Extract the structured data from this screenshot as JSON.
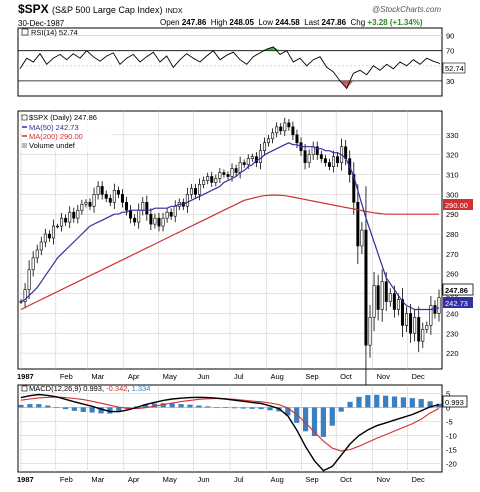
{
  "header": {
    "symbol": "$SPX",
    "name": "(S&P 500 Large Cap Index)",
    "exchange": "INDX",
    "date": "30-Dec-1987",
    "open_label": "Open",
    "open": "247.86",
    "high_label": "High",
    "high": "248.05",
    "low_label": "Low",
    "low": "244.58",
    "last_label": "Last",
    "last": "247.86",
    "chg_label": "Chg",
    "chg": "+3.28 (+1.34%)",
    "brand": "@StockCharts.com"
  },
  "colors": {
    "rsi_line": "#000000",
    "ma50": "#3030a0",
    "ma200": "#d03030",
    "candle": "#000000",
    "grid": "#c8c8c8",
    "hist": "#3a7fc0",
    "macd_line": "#000000",
    "macd_signal": "#d03030",
    "overbought_fill": "#2a8a2a",
    "oversold_fill": "#c03030"
  },
  "chart_data": [
    {
      "type": "line",
      "panel": "rsi",
      "legend": "RSI(14) 52.74",
      "y_ticks": [
        90,
        70,
        50,
        30
      ],
      "ylim": [
        10,
        100
      ],
      "last_value_label": "52.74",
      "x": [
        0,
        4,
        8,
        12,
        16,
        20,
        24,
        28,
        32,
        36,
        40,
        44,
        48,
        52,
        56,
        60,
        64,
        68,
        72,
        76,
        80,
        84,
        88,
        92,
        96,
        100,
        104,
        108,
        112,
        116,
        120,
        124,
        128,
        132,
        136,
        140,
        144,
        148,
        152,
        156,
        160,
        164,
        168,
        172,
        176,
        180,
        184,
        188,
        192,
        196,
        200,
        204,
        208,
        212,
        216,
        220,
        224,
        228,
        232,
        236,
        240,
        244,
        248,
        252
      ],
      "values": [
        46,
        60,
        55,
        66,
        52,
        60,
        65,
        58,
        66,
        60,
        70,
        62,
        56,
        63,
        67,
        52,
        60,
        65,
        55,
        62,
        68,
        55,
        63,
        48,
        58,
        66,
        60,
        55,
        63,
        70,
        58,
        64,
        68,
        58,
        52,
        62,
        67,
        72,
        75,
        65,
        70,
        55,
        60,
        50,
        58,
        62,
        48,
        42,
        30,
        20,
        40,
        44,
        38,
        50,
        44,
        52,
        46,
        55,
        50,
        58,
        52,
        60,
        56,
        53
      ],
      "overbought": 70,
      "oversold": 30
    },
    {
      "type": "candlestick",
      "panel": "price",
      "legend": {
        "series": "$SPX (Daily) 247.86",
        "ma50": "MA(50) 242.73",
        "ma200": "MA(200) 290.00",
        "volume": "Volume undef"
      },
      "y_ticks": [
        330,
        320,
        310,
        300,
        290,
        280,
        270,
        260,
        250,
        240,
        230,
        220
      ],
      "ylim": [
        212,
        342
      ],
      "last_labels": {
        "price": "247.86",
        "ma50": "242.73",
        "ma200": "290.00"
      },
      "x_labels": [
        "1987",
        "Feb",
        "Mar",
        "Apr",
        "May",
        "Jun",
        "Jul",
        "Aug",
        "Sep",
        "Oct",
        "Nov",
        "Dec"
      ],
      "x_label_pos": [
        0,
        21,
        40,
        62,
        83,
        104,
        126,
        148,
        169,
        190,
        212,
        233
      ],
      "close": [
        246,
        252,
        262,
        268,
        272,
        276,
        280,
        278,
        284,
        284,
        288,
        286,
        291,
        288,
        292,
        295,
        296,
        294,
        300,
        304,
        300,
        298,
        296,
        302,
        300,
        296,
        292,
        288,
        286,
        292,
        296,
        290,
        285,
        288,
        284,
        288,
        291,
        289,
        294,
        296,
        294,
        300,
        303,
        300,
        305,
        307,
        309,
        306,
        308,
        311,
        310,
        309,
        313,
        311,
        316,
        315,
        318,
        319,
        316,
        322,
        326,
        328,
        331,
        334,
        332,
        336,
        334,
        330,
        326,
        322,
        316,
        320,
        324,
        320,
        318,
        316,
        314,
        319,
        316,
        324,
        318,
        310,
        296,
        274,
        282,
        224,
        238,
        254,
        242,
        256,
        246,
        250,
        242,
        247,
        234,
        240,
        230,
        238,
        226,
        232,
        234,
        244,
        240,
        248
      ],
      "ma50": [
        246,
        247,
        249,
        251,
        253,
        256,
        259,
        262,
        265,
        268,
        270,
        272,
        274,
        276,
        278,
        280,
        282,
        284,
        285,
        286,
        287,
        288,
        289,
        290,
        290,
        291,
        291,
        292,
        292,
        292,
        292,
        292,
        292,
        293,
        293,
        293,
        293,
        294,
        294,
        295,
        295,
        296,
        297,
        298,
        299,
        300,
        301,
        302,
        303,
        304,
        306,
        307,
        308,
        309,
        311,
        312,
        314,
        315,
        317,
        318,
        320,
        321,
        322,
        323,
        324,
        325,
        326,
        325,
        325,
        324,
        324,
        324,
        324,
        323,
        323,
        322,
        322,
        321,
        321,
        320,
        318,
        314,
        309,
        302,
        295,
        288,
        282,
        276,
        270,
        264,
        258,
        255,
        252,
        249,
        246,
        244,
        243,
        242,
        242,
        242,
        242,
        242,
        242.5,
        242.73
      ],
      "ma200": [
        242,
        243,
        244,
        245,
        246,
        247,
        248,
        249,
        250,
        251,
        252,
        253,
        254,
        255,
        256,
        257,
        258,
        259,
        260,
        261,
        262,
        263,
        264,
        265,
        266,
        267,
        268,
        269,
        270,
        271,
        272,
        273,
        274,
        275,
        276,
        277,
        278,
        279,
        280,
        281,
        282,
        283,
        284,
        285,
        286,
        287,
        288,
        289,
        290,
        291,
        292,
        293,
        294,
        295,
        296,
        297,
        297.5,
        298,
        298.5,
        299,
        299.3,
        299.5,
        299.6,
        299.6,
        299.5,
        299.3,
        299,
        298.6,
        298.2,
        297.8,
        297.4,
        297,
        296.6,
        296.2,
        295.8,
        295.4,
        295,
        294.6,
        294.2,
        293.8,
        293.4,
        293,
        292.6,
        292.2,
        291.8,
        291.4,
        291,
        290.7,
        290.4,
        290.2,
        290,
        290,
        290,
        290,
        290,
        290,
        290,
        290,
        290,
        290,
        290,
        290,
        290,
        290
      ]
    },
    {
      "type": "line",
      "panel": "macd",
      "legend": {
        "label": "MACD(12,26,9)",
        "macd": "0.993",
        "signal": "-0.342",
        "hist": "1.334"
      },
      "y_ticks": [
        5,
        0,
        -5,
        -10,
        -15,
        -20
      ],
      "ylim": [
        -23,
        8
      ],
      "last_labels": {
        "macd": "0.993"
      },
      "x_labels": [
        "1987",
        "Feb",
        "Mar",
        "Apr",
        "May",
        "Jun",
        "Jul",
        "Aug",
        "Sep",
        "Oct",
        "Nov",
        "Dec"
      ],
      "macd": [
        3.5,
        4.2,
        4.6,
        4.3,
        3.8,
        2.9,
        2.0,
        1.2,
        0.4,
        -0.6,
        -1.4,
        -1.5,
        -0.9,
        0.0,
        1.0,
        1.8,
        2.5,
        3.0,
        3.3,
        3.5,
        3.6,
        3.5,
        3.3,
        3.0,
        2.6,
        2.2,
        1.8,
        1.4,
        0.6,
        -0.4,
        -3,
        -8,
        -14,
        -19,
        -22.5,
        -21,
        -17,
        -13,
        -10,
        -8,
        -6.5,
        -5.5,
        -4.5,
        -3.5,
        -2.5,
        -1.2,
        0.2,
        0.993
      ],
      "signal": [
        2.6,
        3.0,
        3.4,
        3.6,
        3.7,
        3.5,
        3.2,
        2.8,
        2.2,
        1.5,
        0.8,
        0.1,
        -0.3,
        -0.4,
        -0.1,
        0.4,
        1.0,
        1.6,
        2.1,
        2.5,
        2.9,
        3.1,
        3.2,
        3.1,
        2.9,
        2.6,
        2.3,
        2.0,
        1.6,
        1.0,
        -0.2,
        -2.5,
        -5.5,
        -8.8,
        -12,
        -14.5,
        -15.5,
        -15,
        -13.8,
        -12.4,
        -11,
        -9.7,
        -8.4,
        -7.1,
        -5.8,
        -4.2,
        -2.0,
        -0.342
      ]
    }
  ]
}
